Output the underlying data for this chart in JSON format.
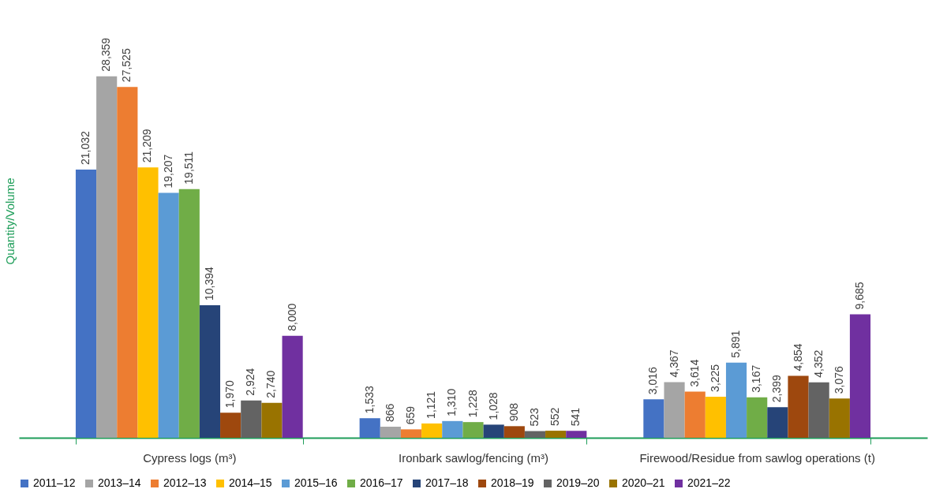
{
  "chart_data": {
    "type": "bar",
    "ylabel": "Quantity/Volume",
    "categories": [
      "Cypress logs (m³)",
      "Ironbark sawlog/fencing (m³)",
      "Firewood/Residue from sawlog operations (t)"
    ],
    "series": [
      {
        "name": "2011–12",
        "color": "#4472c4",
        "values": [
          21032,
          1533,
          3016
        ],
        "value_labels": [
          "21,032",
          "1,533",
          "3,016"
        ]
      },
      {
        "name": "2013–14",
        "color": "#a5a5a5",
        "values": [
          28359,
          866,
          4367
        ],
        "value_labels": [
          "28,359",
          "866",
          "4,367"
        ]
      },
      {
        "name": "2012–13",
        "color": "#ed7d31",
        "values": [
          27525,
          659,
          3614
        ],
        "value_labels": [
          "27,525",
          "659",
          "3,614"
        ]
      },
      {
        "name": "2014–15",
        "color": "#ffc000",
        "values": [
          21209,
          1121,
          3225
        ],
        "value_labels": [
          "21,209",
          "1,121",
          "3,225"
        ]
      },
      {
        "name": "2015–16",
        "color": "#5b9bd5",
        "values": [
          19207,
          1310,
          5891
        ],
        "value_labels": [
          "19,207",
          "1,310",
          "5,891"
        ]
      },
      {
        "name": "2016–17",
        "color": "#70ad47",
        "values": [
          19511,
          1228,
          3167
        ],
        "value_labels": [
          "19,511",
          "1,228",
          "3,167"
        ]
      },
      {
        "name": "2017–18",
        "color": "#264478",
        "values": [
          10394,
          1028,
          2399
        ],
        "value_labels": [
          "10,394",
          "1,028",
          "2,399"
        ]
      },
      {
        "name": "2018–19",
        "color": "#9e480e",
        "values": [
          1970,
          908,
          4854
        ],
        "value_labels": [
          "1,970",
          "908",
          "4,854"
        ]
      },
      {
        "name": "2019–20",
        "color": "#636363",
        "values": [
          2924,
          523,
          4352
        ],
        "value_labels": [
          "2,924",
          "523",
          "4,352"
        ]
      },
      {
        "name": "2020–21",
        "color": "#997300",
        "values": [
          2740,
          552,
          3076
        ],
        "value_labels": [
          "2,740",
          "552",
          "3,076"
        ]
      },
      {
        "name": "2021–22",
        "color": "#7030a0",
        "values": [
          8000,
          541,
          9685
        ],
        "value_labels": [
          "8,000",
          "541",
          "9,685"
        ]
      }
    ],
    "legend": "bottom"
  }
}
